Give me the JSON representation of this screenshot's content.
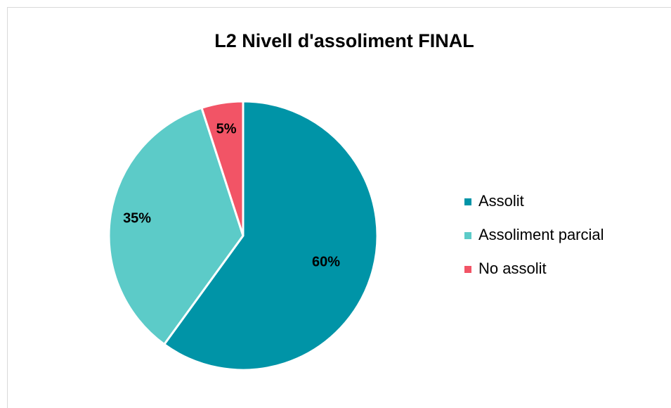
{
  "chart_data": {
    "type": "pie",
    "title": "L2 Nivell d'assoliment FINAL",
    "categories": [
      "Assolit",
      "Assoliment parcial",
      "No assolit"
    ],
    "values": [
      60,
      35,
      5
    ],
    "value_labels": [
      "60%",
      "35%",
      "5%"
    ],
    "colors": [
      "#0094a7",
      "#5ccbc8",
      "#f25466"
    ],
    "legend": "right"
  }
}
